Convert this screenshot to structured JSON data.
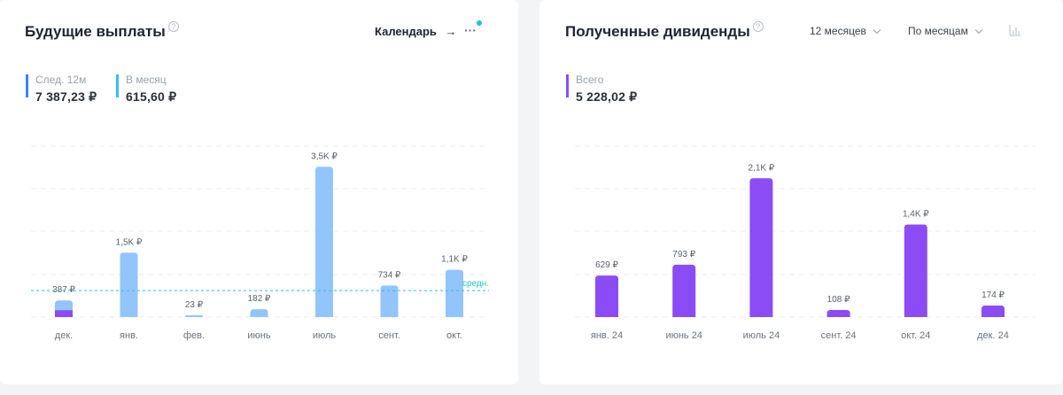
{
  "left_card": {
    "title": "Будущие выплаты",
    "help_glyph": "?",
    "calendar_label": "Календарь",
    "arrow_glyph": "→",
    "more_glyph": "···",
    "stats": [
      {
        "label": "След. 12м",
        "value": "7 387,23 ₽",
        "color": "#3b82f6"
      },
      {
        "label": "В месяц",
        "value": "615,60 ₽",
        "color": "#38bdf8"
      }
    ],
    "avg_label": "средн."
  },
  "right_card": {
    "title": "Полученные дивиденды",
    "help_glyph": "?",
    "period_select": "12 месяцев",
    "group_select": "По месяцам",
    "stats": [
      {
        "label": "Всего",
        "value": "5 228,02 ₽",
        "color": "#8b4cf6"
      }
    ]
  },
  "chart_data": [
    {
      "type": "bar",
      "categories": [
        "дек.",
        "янв.",
        "фев.",
        "июнь",
        "июль",
        "сент.",
        "окт."
      ],
      "values": [
        387,
        1500,
        23,
        182,
        3500,
        734,
        1100
      ],
      "labels": [
        "387 ₽",
        "1,5K ₽",
        "23 ₽",
        "182 ₽",
        "3,5K ₽",
        "734 ₽",
        "1,1K ₽"
      ],
      "received_part": [
        160,
        0,
        0,
        0,
        0,
        0,
        0
      ],
      "average": 615.6,
      "ylim": [
        0,
        4000
      ],
      "grid": true,
      "colors": {
        "bar": "#93c5fd",
        "received": "#8b4cf6",
        "avg": "#22c4d8"
      }
    },
    {
      "type": "bar",
      "categories": [
        "янв. 24",
        "июнь 24",
        "июль 24",
        "сент. 24",
        "окт. 24",
        "дек. 24"
      ],
      "values": [
        629,
        793,
        2100,
        108,
        1400,
        174
      ],
      "labels": [
        "629 ₽",
        "793 ₽",
        "2,1K ₽",
        "108 ₽",
        "1,4K ₽",
        "174 ₽"
      ],
      "ylim": [
        0,
        2600
      ],
      "grid": true,
      "colors": {
        "bar": "#8b4cf6"
      }
    }
  ]
}
